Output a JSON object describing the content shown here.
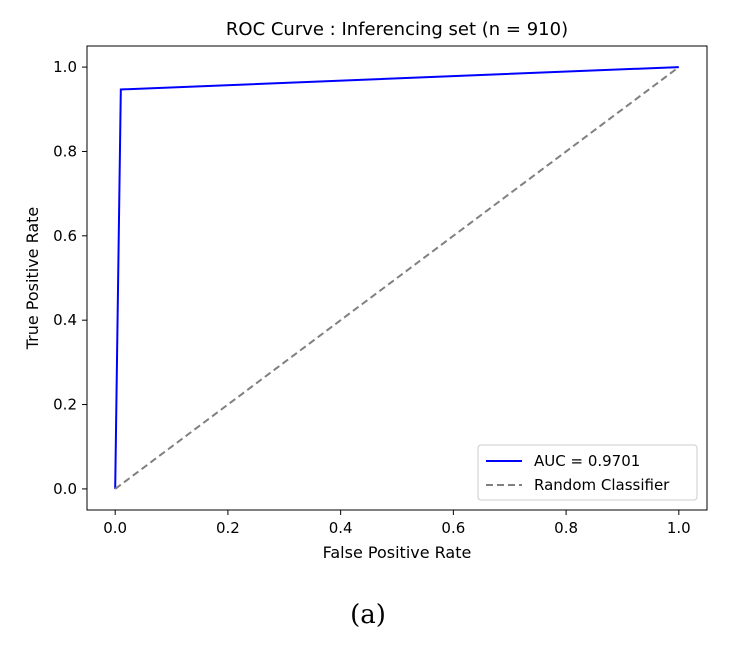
{
  "chart_data": {
    "type": "line",
    "title": "ROC Curve : Inferencing set (n = 910)",
    "xlabel": "False Positive Rate",
    "ylabel": "True Positive Rate",
    "xlim": [
      -0.05,
      1.05
    ],
    "ylim": [
      -0.05,
      1.05
    ],
    "xticks": [
      "0.0",
      "0.2",
      "0.4",
      "0.6",
      "0.8",
      "1.0"
    ],
    "yticks": [
      "0.0",
      "0.2",
      "0.4",
      "0.6",
      "0.8",
      "1.0"
    ],
    "grid": false,
    "legend_placement": "lower-right",
    "series": [
      {
        "name": "AUC = 0.9701",
        "color": "#0000ff",
        "style": "solid",
        "x": [
          0.0,
          0.01,
          1.0
        ],
        "y": [
          0.0,
          0.947,
          1.0
        ]
      },
      {
        "name": "Random Classifier",
        "color": "#808080",
        "style": "dashed",
        "x": [
          0.0,
          1.0
        ],
        "y": [
          0.0,
          1.0
        ]
      }
    ]
  },
  "caption": "(a)"
}
